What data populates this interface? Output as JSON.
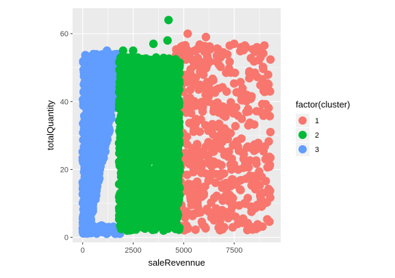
{
  "chart_data": {
    "type": "scatter",
    "xlabel": "saleRevennue",
    "ylabel": "totalQuantity",
    "xlim": [
      -500,
      9800
    ],
    "ylim": [
      -1.5,
      67.5
    ],
    "x_ticks": [
      {
        "value": 0,
        "label": "0"
      },
      {
        "value": 2500,
        "label": "2500"
      },
      {
        "value": 5000,
        "label": "5000"
      },
      {
        "value": 7500,
        "label": "7500"
      }
    ],
    "y_ticks": [
      {
        "value": 0,
        "label": "0"
      },
      {
        "value": 20,
        "label": "20"
      },
      {
        "value": 40,
        "label": "40"
      },
      {
        "value": 60,
        "label": "60"
      }
    ],
    "grid": true,
    "legend": {
      "title": "factor(cluster)",
      "position": "right",
      "entries": [
        {
          "label": "1",
          "color": "#F8766D"
        },
        {
          "label": "2",
          "color": "#00BA38"
        },
        {
          "label": "3",
          "color": "#619CFF"
        }
      ]
    },
    "series": [
      {
        "name": "1",
        "color": "#F8766D",
        "x_range": [
          4600,
          9300
        ],
        "y_range": [
          2,
          60
        ],
        "notable_points": [
          [
            5200,
            60
          ],
          [
            6100,
            59
          ],
          [
            7500,
            57
          ],
          [
            8800,
            53
          ],
          [
            9200,
            45
          ],
          [
            8400,
            8
          ],
          [
            6500,
            5
          ],
          [
            5200,
            2.5
          ],
          [
            7000,
            3
          ],
          [
            8000,
            10
          ]
        ]
      },
      {
        "name": "2",
        "color": "#00BA38",
        "x_range": [
          1800,
          4800
        ],
        "y_range": [
          2,
          64
        ],
        "notable_points": [
          [
            4250,
            64
          ],
          [
            4200,
            58
          ],
          [
            3500,
            57
          ],
          [
            2500,
            55
          ],
          [
            2000,
            55
          ],
          [
            4000,
            52
          ],
          [
            2200,
            2
          ],
          [
            3000,
            3
          ],
          [
            4000,
            2
          ],
          [
            4600,
            4
          ]
        ]
      },
      {
        "name": "3",
        "color": "#619CFF",
        "x_range": [
          0,
          1900
        ],
        "y_range": [
          1,
          55
        ],
        "notable_points": [
          [
            1200,
            55
          ],
          [
            1700,
            54
          ],
          [
            1600,
            46
          ],
          [
            500,
            30
          ],
          [
            200,
            15
          ],
          [
            100,
            5
          ],
          [
            600,
            2
          ],
          [
            1000,
            1.5
          ],
          [
            1500,
            2
          ],
          [
            1800,
            3
          ]
        ]
      }
    ]
  }
}
